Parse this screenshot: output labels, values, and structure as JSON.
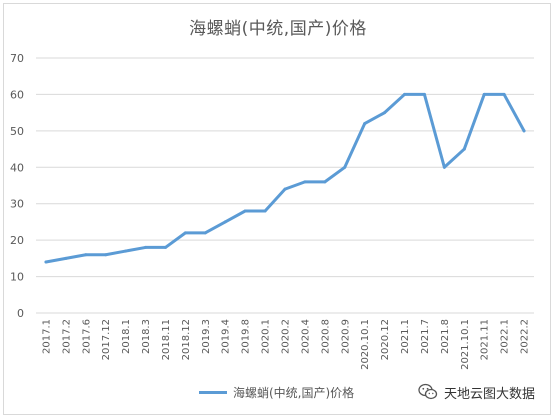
{
  "chart_data": {
    "type": "line",
    "title": "海螺蛸(中统,国产)价格",
    "categories": [
      "2017.1",
      "2017.2",
      "2017.6",
      "2017.12",
      "2018.1",
      "2018.3",
      "2018.11",
      "2018.12",
      "2019.3",
      "2019.4",
      "2019.8",
      "2020.1",
      "2020.2",
      "2020.4",
      "2020.8",
      "2020.9",
      "2020.10.1",
      "2020.12",
      "2021.1",
      "2021.7",
      "2021.8",
      "2021.10.1",
      "2021.11",
      "2022.1",
      "2022.2"
    ],
    "series": [
      {
        "name": "海螺蛸(中统,国产)价格",
        "color": "#5b9bd5",
        "values": [
          14,
          15,
          16,
          16,
          17,
          18,
          18,
          22,
          22,
          25,
          28,
          28,
          34,
          36,
          36,
          40,
          52,
          55,
          60,
          60,
          40,
          45,
          60,
          60,
          50
        ]
      }
    ],
    "ylim": [
      0,
      70
    ],
    "yticks": [
      0,
      10,
      20,
      30,
      40,
      50,
      60,
      70
    ],
    "grid": true,
    "legend_position": "bottom",
    "xlabel": "",
    "ylabel": ""
  },
  "watermark": {
    "text": "天地云图大数据",
    "icon": "wechat-icon"
  }
}
